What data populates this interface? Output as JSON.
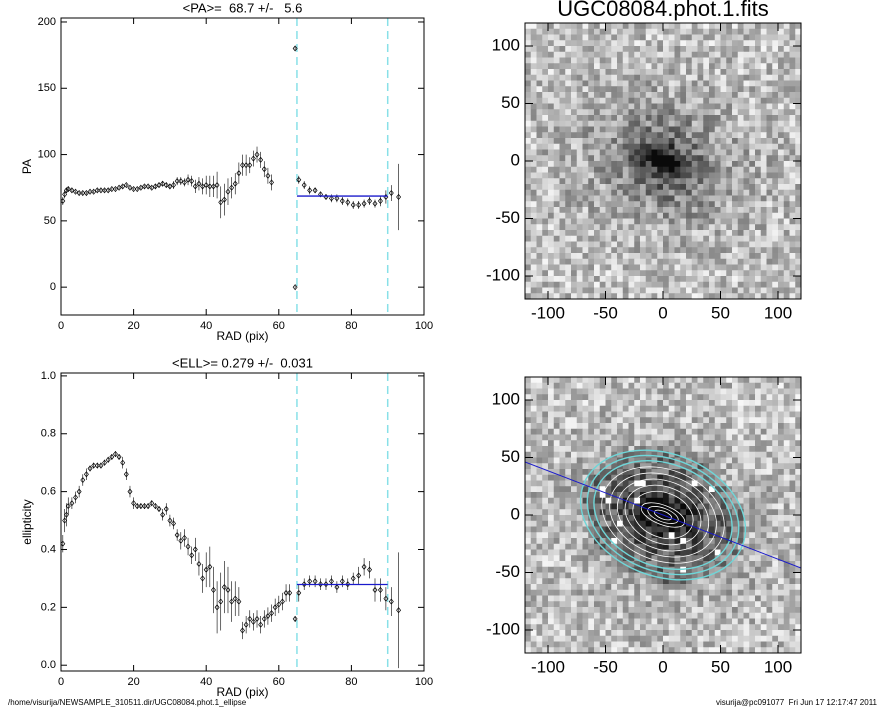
{
  "chart_data": [
    {
      "type": "errorscatter",
      "title": "<PA>=  68.7 +/-   5.6",
      "x_label": "RAD (pix)",
      "y_label": "PA",
      "xlim": [
        0,
        100
      ],
      "xticks": [
        0,
        20,
        40,
        60,
        80,
        100
      ],
      "ylim": [
        -21,
        203
      ],
      "yticks": [
        0,
        50,
        100,
        150,
        200
      ],
      "color": "#000000",
      "vlines": [
        65,
        90
      ],
      "vline_color": "#88e0e8",
      "fit_range": [
        65,
        90
      ],
      "fit_value": 68.7,
      "fit_color": "#1a1acc",
      "x": [
        0.5,
        1,
        1.5,
        2,
        3,
        4,
        5,
        6,
        7,
        8,
        9,
        10,
        11,
        12,
        13,
        14,
        15,
        16,
        17,
        18,
        19,
        20,
        21,
        22,
        23,
        24,
        25,
        26,
        27,
        28,
        29,
        30,
        31,
        32,
        33,
        34,
        35,
        36,
        37,
        38,
        39,
        40,
        41,
        42,
        43,
        44,
        45,
        46,
        47,
        48,
        49,
        50,
        51,
        52,
        53,
        54,
        55,
        56,
        57,
        58,
        64.5,
        64.5,
        65.5,
        67,
        68.5,
        70,
        71.5,
        73,
        74.5,
        76,
        77.5,
        79,
        80.5,
        82,
        83.5,
        85,
        86.5,
        88,
        89.5,
        91,
        93
      ],
      "values": [
        65,
        70,
        73,
        74,
        73,
        72,
        71,
        71,
        71,
        72,
        72,
        73,
        73,
        73,
        73,
        74,
        74,
        75,
        76,
        77,
        75,
        74,
        74,
        75,
        76,
        76,
        75,
        76,
        77,
        78,
        77,
        76,
        77,
        80,
        80,
        79,
        81,
        80,
        76,
        78,
        76,
        77,
        76,
        76,
        77,
        64,
        66,
        72,
        75,
        78,
        86,
        92,
        92,
        92,
        97,
        100,
        96,
        89,
        84,
        79,
        180,
        0,
        81,
        77,
        73,
        73,
        70,
        68,
        67,
        67,
        65,
        64,
        62,
        62,
        63,
        65,
        63,
        65,
        68,
        71,
        68
      ],
      "errors": [
        3,
        3,
        2,
        2,
        1,
        1,
        1,
        1,
        1,
        1,
        1,
        1,
        1,
        1,
        1,
        1,
        1,
        1,
        1,
        1,
        1,
        1,
        1,
        1,
        1,
        1,
        1,
        2,
        2,
        2,
        2,
        2,
        3,
        3,
        3,
        3,
        4,
        4,
        5,
        5,
        6,
        7,
        8,
        8,
        10,
        12,
        12,
        10,
        8,
        8,
        8,
        8,
        8,
        6,
        6,
        6,
        6,
        6,
        6,
        6,
        1,
        1,
        3,
        3,
        3,
        2,
        2,
        2,
        3,
        3,
        3,
        3,
        3,
        3,
        3,
        3,
        3,
        4,
        5,
        6,
        25
      ]
    },
    {
      "type": "errorscatter",
      "title": "<ELL>= 0.279 +/-  0.031",
      "x_label": "RAD (pix)",
      "y_label": "ellipticity",
      "xlim": [
        0,
        100
      ],
      "xticks": [
        0,
        20,
        40,
        60,
        80,
        100
      ],
      "ylim": [
        -0.02,
        1.01
      ],
      "yticks": [
        {
          "value": 0,
          "label": "0.0"
        },
        {
          "value": 0.2,
          "label": "0.2"
        },
        {
          "value": 0.4,
          "label": "0.4"
        },
        {
          "value": 0.6,
          "label": "0.6"
        },
        {
          "value": 0.8,
          "label": "0.8"
        },
        {
          "value": 1,
          "label": "1.0"
        }
      ],
      "color": "#000000",
      "vlines": [
        65,
        90
      ],
      "vline_color": "#88e0e8",
      "fit_range": [
        65,
        90
      ],
      "fit_value": 0.279,
      "fit_color": "#1a1acc",
      "x": [
        0.5,
        1,
        1.5,
        2,
        3,
        4,
        5,
        6,
        7,
        8,
        9,
        10,
        11,
        12,
        13,
        14,
        15,
        16,
        17,
        18,
        19,
        20,
        21,
        22,
        23,
        24,
        25,
        26,
        27,
        28,
        29,
        30,
        31,
        32,
        33,
        34,
        35,
        36,
        37,
        38,
        39,
        40,
        41,
        42,
        43,
        44,
        45,
        46,
        47,
        48,
        49,
        50,
        51,
        52,
        53,
        54,
        55,
        56,
        57,
        58,
        59,
        60,
        61,
        62,
        63,
        64.5,
        65.5,
        67,
        68.5,
        70,
        71.5,
        73,
        74.5,
        76,
        77.5,
        79,
        80.5,
        82,
        83.5,
        85,
        86.5,
        88,
        89.5,
        91,
        93
      ],
      "values": [
        0.42,
        0.5,
        0.52,
        0.55,
        0.56,
        0.58,
        0.6,
        0.64,
        0.66,
        0.68,
        0.69,
        0.69,
        0.69,
        0.7,
        0.71,
        0.72,
        0.73,
        0.72,
        0.7,
        0.66,
        0.6,
        0.56,
        0.55,
        0.55,
        0.55,
        0.55,
        0.56,
        0.55,
        0.54,
        0.52,
        0.54,
        0.5,
        0.49,
        0.45,
        0.43,
        0.44,
        0.41,
        0.38,
        0.4,
        0.35,
        0.3,
        0.33,
        0.34,
        0.26,
        0.2,
        0.22,
        0.27,
        0.26,
        0.22,
        0.23,
        0.22,
        0.12,
        0.14,
        0.16,
        0.15,
        0.16,
        0.14,
        0.16,
        0.17,
        0.18,
        0.2,
        0.21,
        0.22,
        0.25,
        0.25,
        0.16,
        0.25,
        0.28,
        0.29,
        0.29,
        0.28,
        0.28,
        0.29,
        0.27,
        0.29,
        0.28,
        0.3,
        0.31,
        0.34,
        0.33,
        0.26,
        0.26,
        0.23,
        0.22,
        0.19
      ],
      "errors": [
        0.03,
        0.04,
        0.04,
        0.03,
        0.02,
        0.02,
        0.02,
        0.02,
        0.02,
        0.01,
        0.01,
        0.01,
        0.01,
        0.01,
        0.01,
        0.01,
        0.01,
        0.01,
        0.02,
        0.02,
        0.02,
        0.02,
        0.01,
        0.01,
        0.01,
        0.01,
        0.01,
        0.01,
        0.01,
        0.02,
        0.02,
        0.02,
        0.02,
        0.02,
        0.03,
        0.03,
        0.03,
        0.03,
        0.04,
        0.04,
        0.05,
        0.06,
        0.07,
        0.08,
        0.09,
        0.1,
        0.09,
        0.08,
        0.07,
        0.06,
        0.05,
        0.03,
        0.03,
        0.03,
        0.03,
        0.03,
        0.03,
        0.03,
        0.03,
        0.03,
        0.03,
        0.03,
        0.03,
        0.03,
        0.03,
        0.01,
        0.03,
        0.02,
        0.02,
        0.02,
        0.02,
        0.02,
        0.02,
        0.02,
        0.02,
        0.02,
        0.02,
        0.03,
        0.03,
        0.03,
        0.04,
        0.04,
        0.04,
        0.05,
        0.2
      ]
    },
    {
      "type": "image",
      "title": "UGC08084.phot.1.fits",
      "xlim": [
        -120,
        120
      ],
      "xticks": [
        -100,
        -50,
        0,
        50,
        100
      ],
      "ylim": [
        -120,
        120
      ],
      "yticks": [
        -100,
        -50,
        0,
        50,
        100
      ],
      "contours": false
    },
    {
      "type": "image",
      "xlim": [
        -120,
        120
      ],
      "xticks": [
        -100,
        -50,
        0,
        50,
        100
      ],
      "ylim": [
        -120,
        120
      ],
      "yticks": [
        -100,
        -50,
        0,
        50,
        100
      ],
      "contours": true
    }
  ],
  "footer": {
    "left": "/home/visurija/NEWSAMPLE_310511.dir/UGC08084.phot.1_ellipse",
    "right": "visurija@pc091077  Fri Jun 17 12:17:47 2011"
  }
}
